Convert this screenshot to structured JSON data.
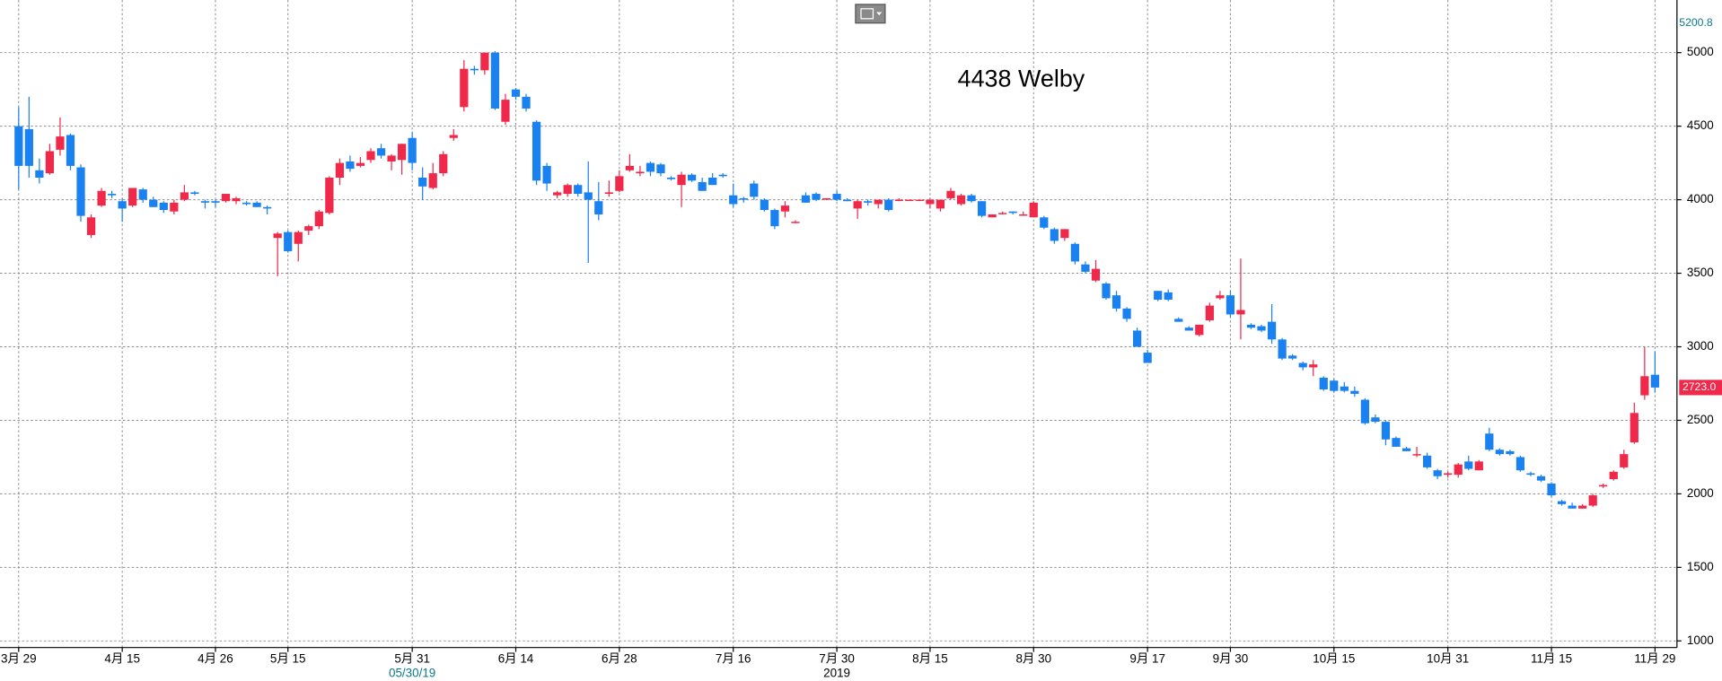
{
  "chart_data": {
    "type": "candlestick",
    "title": "4438 Welby",
    "categories": [
      "3月 29",
      null,
      null,
      null,
      null,
      null,
      null,
      null,
      null,
      null,
      "4月 15",
      null,
      null,
      null,
      null,
      null,
      null,
      null,
      null,
      "4月 26",
      null,
      null,
      null,
      null,
      null,
      null,
      "5月 15",
      null,
      null,
      null,
      null,
      null,
      null,
      null,
      null,
      null,
      null,
      null,
      "5月 31",
      null,
      null,
      null,
      null,
      null,
      null,
      null,
      null,
      null,
      "6月 14",
      null,
      null,
      null,
      null,
      null,
      null,
      null,
      null,
      null,
      "6月 28",
      null,
      null,
      null,
      null,
      null,
      null,
      null,
      null,
      null,
      null,
      "7月 16",
      null,
      null,
      null,
      null,
      null,
      null,
      null,
      null,
      null,
      "7月 30",
      null,
      null,
      null,
      null,
      null,
      null,
      null,
      null,
      "8月 15",
      null,
      null,
      null,
      null,
      null,
      null,
      null,
      null,
      null,
      "8月 30",
      null,
      null,
      null,
      null,
      null,
      null,
      null,
      null,
      null,
      null,
      "9月 17",
      null,
      null,
      null,
      null,
      null,
      null,
      null,
      "9月 30",
      null,
      null,
      null,
      null,
      null,
      null,
      null,
      null,
      null,
      "10月 15",
      null,
      null,
      null,
      null,
      null,
      null,
      null,
      null,
      null,
      null,
      "10月 31",
      null,
      null,
      null,
      null,
      null,
      null,
      null,
      null,
      null,
      "11月 15",
      null,
      null,
      null,
      null,
      null,
      null,
      null,
      null,
      null,
      "11月 29"
    ],
    "x_sub_ticks": [
      {
        "value": 38,
        "label": "05/30/19"
      },
      {
        "value": 79,
        "label": "2019"
      }
    ],
    "open": [
      4500,
      4480,
      4200,
      4180,
      4340,
      4440,
      4220,
      3760,
      3960,
      4040,
      3990,
      3960,
      4070,
      4000,
      3980,
      3920,
      4000,
      4050,
      3990,
      3990,
      3990,
      3990,
      3980,
      3980,
      3950,
      3740,
      3780,
      3700,
      3790,
      3820,
      3910,
      4150,
      4260,
      4230,
      4270,
      4350,
      4260,
      4270,
      4420,
      4150,
      4080,
      4180,
      4420,
      4630,
      4890,
      4880,
      5000,
      4530,
      4750,
      4700,
      4530,
      4230,
      4030,
      4040,
      4100,
      4050,
      3990,
      4040,
      4060,
      4200,
      4180,
      4250,
      4240,
      4150,
      4100,
      4170,
      4120,
      4150,
      4170,
      4030,
      4010,
      4110,
      4000,
      3930,
      3920,
      3850,
      4030,
      4040,
      4000,
      4040,
      4000,
      3940,
      3990,
      3970,
      4000,
      4000,
      4000,
      4000,
      3970,
      3940,
      4010,
      3970,
      4030,
      3990,
      3880,
      3910,
      3920,
      3900,
      3880,
      3880,
      3800,
      3740,
      3700,
      3560,
      3450,
      3430,
      3350,
      3260,
      3110,
      2960,
      3380,
      3370,
      3190,
      3130,
      3080,
      3180,
      3330,
      3350,
      3220,
      3150,
      3140,
      3170,
      3050,
      2940,
      2890,
      2860,
      2790,
      2770,
      2730,
      2700,
      2640,
      2520,
      2490,
      2380,
      2310,
      2270,
      2260,
      2160,
      2130,
      2130,
      2220,
      2160,
      2410,
      2300,
      2290,
      2250,
      2140,
      2120,
      2070,
      1950,
      1920,
      1900,
      1920,
      2050,
      2100,
      2180,
      2350,
      2670,
      2810
    ],
    "high": [
      4630,
      4700,
      4280,
      4380,
      4560,
      4450,
      4240,
      3900,
      4080,
      4060,
      4010,
      4080,
      4080,
      4020,
      3990,
      4000,
      4100,
      4060,
      4000,
      4000,
      4040,
      4020,
      3990,
      3990,
      3960,
      3780,
      3790,
      3790,
      3830,
      3930,
      4160,
      4280,
      4300,
      4290,
      4350,
      4380,
      4310,
      4380,
      4460,
      4220,
      4250,
      4330,
      4480,
      4950,
      4910,
      5000,
      5010,
      4720,
      4760,
      4720,
      4540,
      4250,
      4060,
      4110,
      4110,
      4260,
      4120,
      4130,
      4200,
      4310,
      4230,
      4260,
      4250,
      4160,
      4190,
      4180,
      4150,
      4180,
      4180,
      4110,
      4020,
      4130,
      4010,
      3940,
      3990,
      3860,
      4050,
      4050,
      4010,
      4060,
      4010,
      4000,
      4000,
      4000,
      4010,
      4010,
      4000,
      4000,
      4010,
      4000,
      4080,
      4040,
      4040,
      3990,
      3900,
      3920,
      3920,
      3920,
      3990,
      3890,
      3810,
      3800,
      3710,
      3580,
      3590,
      3440,
      3380,
      3270,
      3130,
      2980,
      3380,
      3390,
      3200,
      3140,
      3150,
      3300,
      3380,
      3380,
      3600,
      3160,
      3150,
      3290,
      3060,
      2950,
      2900,
      2910,
      2800,
      2780,
      2760,
      2730,
      2650,
      2540,
      2500,
      2390,
      2320,
      2320,
      2280,
      2170,
      2150,
      2210,
      2260,
      2230,
      2450,
      2310,
      2300,
      2260,
      2150,
      2130,
      2080,
      1960,
      1940,
      1930,
      2000,
      2070,
      2160,
      2300,
      2620,
      3000,
      2970
    ],
    "low": [
      4070,
      4150,
      4110,
      4170,
      4300,
      4200,
      3850,
      3740,
      3950,
      4010,
      3850,
      3950,
      3980,
      3950,
      3910,
      3900,
      3990,
      4030,
      3940,
      3950,
      3980,
      3970,
      3960,
      3950,
      3900,
      3480,
      3640,
      3580,
      3760,
      3800,
      3900,
      4100,
      4190,
      4220,
      4250,
      4280,
      4200,
      4170,
      4200,
      4000,
      4070,
      4160,
      4400,
      4600,
      4850,
      4850,
      4610,
      4510,
      4680,
      4600,
      4100,
      4060,
      4010,
      4020,
      4020,
      3570,
      3860,
      4020,
      4050,
      4190,
      4160,
      4160,
      4160,
      4130,
      3950,
      4120,
      4060,
      4100,
      4150,
      3950,
      3980,
      4000,
      3920,
      3800,
      3880,
      3840,
      3980,
      3990,
      4000,
      3990,
      3990,
      3870,
      3960,
      3940,
      3920,
      3990,
      4000,
      4000,
      3940,
      3920,
      4000,
      3960,
      3980,
      3880,
      3880,
      3900,
      3900,
      3890,
      3880,
      3800,
      3700,
      3720,
      3560,
      3500,
      3440,
      3320,
      3240,
      3170,
      3000,
      2890,
      3310,
      3310,
      3170,
      3110,
      3070,
      3170,
      3320,
      3200,
      3050,
      3120,
      3100,
      3020,
      2910,
      2910,
      2840,
      2800,
      2700,
      2690,
      2690,
      2660,
      2470,
      2480,
      2330,
      2320,
      2290,
      2250,
      2170,
      2100,
      2110,
      2110,
      2160,
      2160,
      2290,
      2260,
      2260,
      2150,
      2120,
      2080,
      1980,
      1920,
      1900,
      1900,
      1910,
      2040,
      2090,
      2170,
      2340,
      2640,
      2690
    ],
    "close": [
      4230,
      4230,
      4150,
      4330,
      4430,
      4230,
      3890,
      3880,
      4060,
      4030,
      3940,
      4080,
      4000,
      3950,
      3930,
      3980,
      4050,
      4040,
      3980,
      3980,
      4040,
      4010,
      3970,
      3950,
      3940,
      3770,
      3650,
      3780,
      3820,
      3920,
      4150,
      4250,
      4210,
      4250,
      4330,
      4300,
      4300,
      4380,
      4250,
      4090,
      4180,
      4310,
      4440,
      4890,
      4880,
      5000,
      4620,
      4680,
      4700,
      4620,
      4130,
      4110,
      4050,
      4100,
      4040,
      4000,
      3900,
      4050,
      4160,
      4230,
      4190,
      4190,
      4180,
      4140,
      4170,
      4130,
      4060,
      4100,
      4160,
      3970,
      4000,
      4020,
      3930,
      3820,
      3960,
      3850,
      3980,
      4000,
      4010,
      4000,
      3990,
      3990,
      3980,
      4000,
      3930,
      4000,
      4000,
      4000,
      4000,
      4000,
      4060,
      4030,
      3990,
      3890,
      3900,
      3910,
      3910,
      3900,
      3980,
      3810,
      3720,
      3800,
      3580,
      3510,
      3530,
      3330,
      3260,
      3190,
      3000,
      2890,
      3320,
      3320,
      3170,
      3110,
      3150,
      3280,
      3350,
      3220,
      3250,
      3130,
      3110,
      3050,
      2920,
      2920,
      2860,
      2880,
      2710,
      2700,
      2700,
      2680,
      2480,
      2490,
      2370,
      2320,
      2290,
      2270,
      2180,
      2120,
      2140,
      2200,
      2170,
      2220,
      2300,
      2270,
      2270,
      2160,
      2130,
      2090,
      1990,
      1930,
      1900,
      1920,
      1990,
      2060,
      2150,
      2270,
      2550,
      2800,
      2723
    ],
    "up_color": "#f0284a",
    "down_color": "#1a82f0",
    "ylim": [
      955,
      5358
    ],
    "yticks": [
      1000,
      1500,
      2000,
      2500,
      3000,
      3500,
      4000,
      4500,
      5000
    ],
    "grid": true,
    "axis_high": 5200.8,
    "last_price": {
      "value": 2723,
      "label": "2723.0"
    }
  }
}
